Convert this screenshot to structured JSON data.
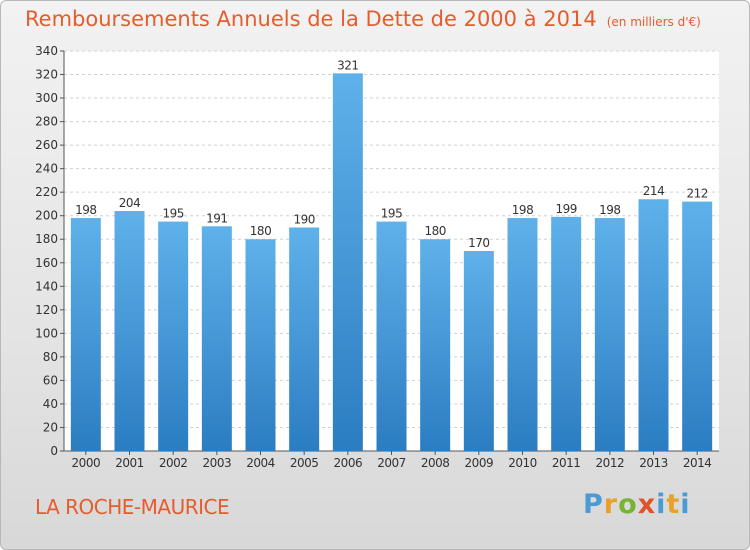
{
  "header": {
    "title": "Remboursements Annuels de la Dette de 2000 à 2014",
    "subtitle": "(en milliers d'€)"
  },
  "footer": {
    "location": "LA ROCHE-MAURICE",
    "logo_text": "Proxiti"
  },
  "colors": {
    "title": "#e65c2b",
    "bar_top": "#5fb1ea",
    "bar_bottom": "#2b7dc2"
  },
  "chart_data": {
    "type": "bar",
    "title": "Remboursements Annuels de la Dette de 2000 à 2014",
    "subtitle": "(en milliers d'€)",
    "xlabel": "",
    "ylabel": "",
    "categories": [
      "2000",
      "2001",
      "2002",
      "2003",
      "2004",
      "2005",
      "2006",
      "2007",
      "2008",
      "2009",
      "2010",
      "2011",
      "2012",
      "2013",
      "2014"
    ],
    "values": [
      198,
      204,
      195,
      191,
      180,
      190,
      321,
      195,
      180,
      170,
      198,
      199,
      198,
      214,
      212
    ],
    "ylim": [
      0,
      340
    ],
    "yticks": [
      0,
      20,
      40,
      60,
      80,
      100,
      120,
      140,
      160,
      180,
      200,
      220,
      240,
      260,
      280,
      300,
      320,
      340
    ],
    "grid": true,
    "data_labels": true
  }
}
